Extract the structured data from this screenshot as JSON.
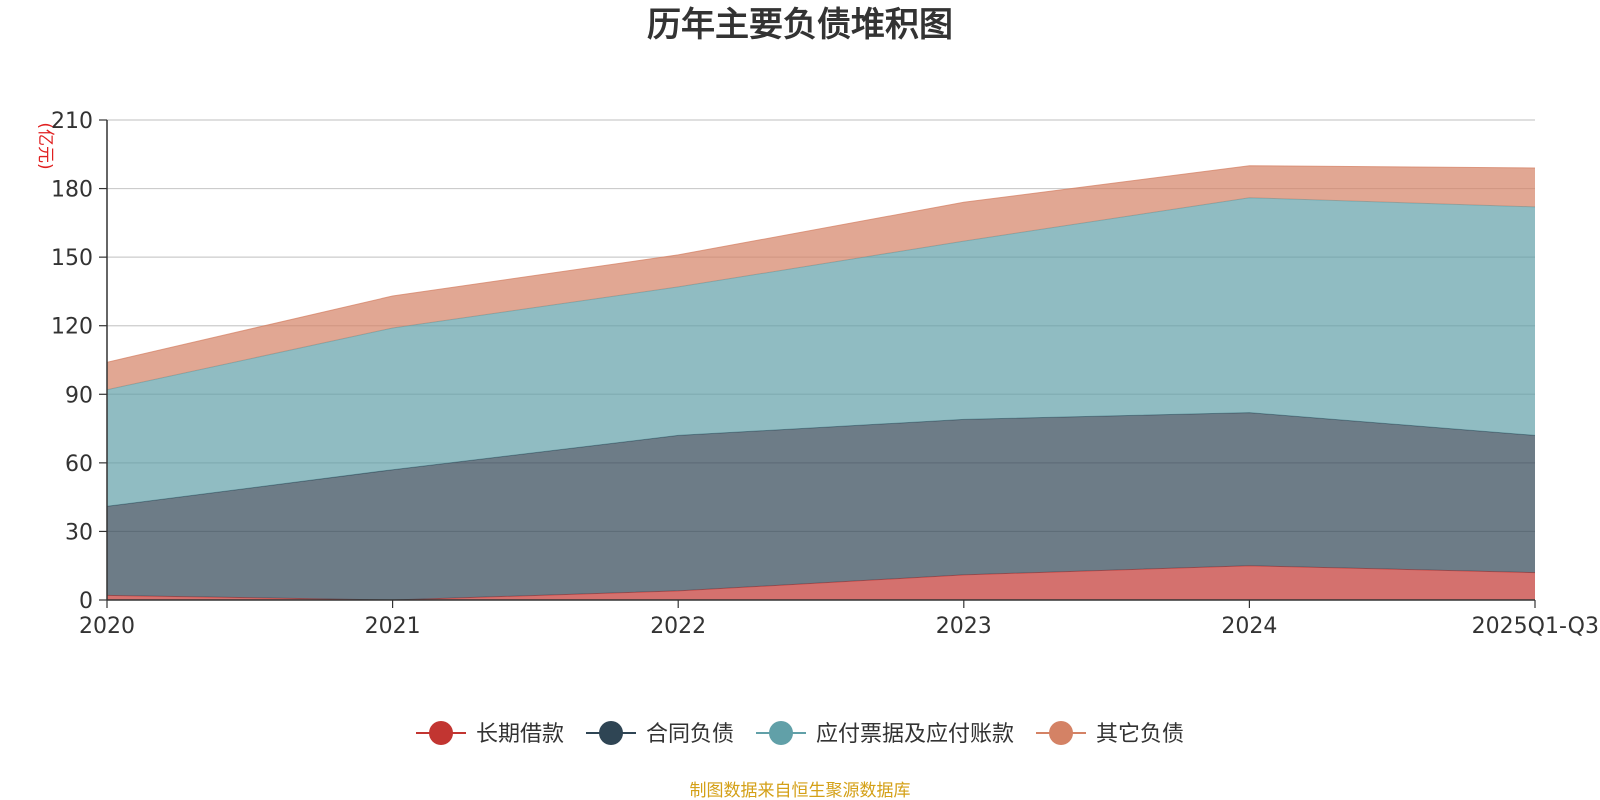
{
  "chart_data": {
    "type": "area",
    "stacked": true,
    "title": "历年主要负债堆积图",
    "ylabel": "(亿元)",
    "xlabel": "",
    "categories": [
      "2020",
      "2021",
      "2022",
      "2023",
      "2024",
      "2025Q1-Q3"
    ],
    "ylim": [
      0,
      210
    ],
    "yticks": [
      0,
      30,
      60,
      90,
      120,
      150,
      180,
      210
    ],
    "grid": true,
    "legend_position": "bottom",
    "series": [
      {
        "name": "长期借款",
        "color": "#c23531",
        "values": [
          2,
          0,
          4,
          11,
          15,
          12
        ]
      },
      {
        "name": "合同负债",
        "color": "#2f4554",
        "values": [
          39,
          57,
          68,
          68,
          67,
          60
        ]
      },
      {
        "name": "应付票据及应付账款",
        "color": "#61a0a8",
        "values": [
          51,
          62,
          65,
          78,
          94,
          100
        ]
      },
      {
        "name": "其它负债",
        "color": "#d48265",
        "values": [
          12,
          14,
          14,
          17,
          14,
          17
        ]
      }
    ],
    "source_note": "制图数据来自恒生聚源数据库",
    "source_color": "#d4a017"
  }
}
